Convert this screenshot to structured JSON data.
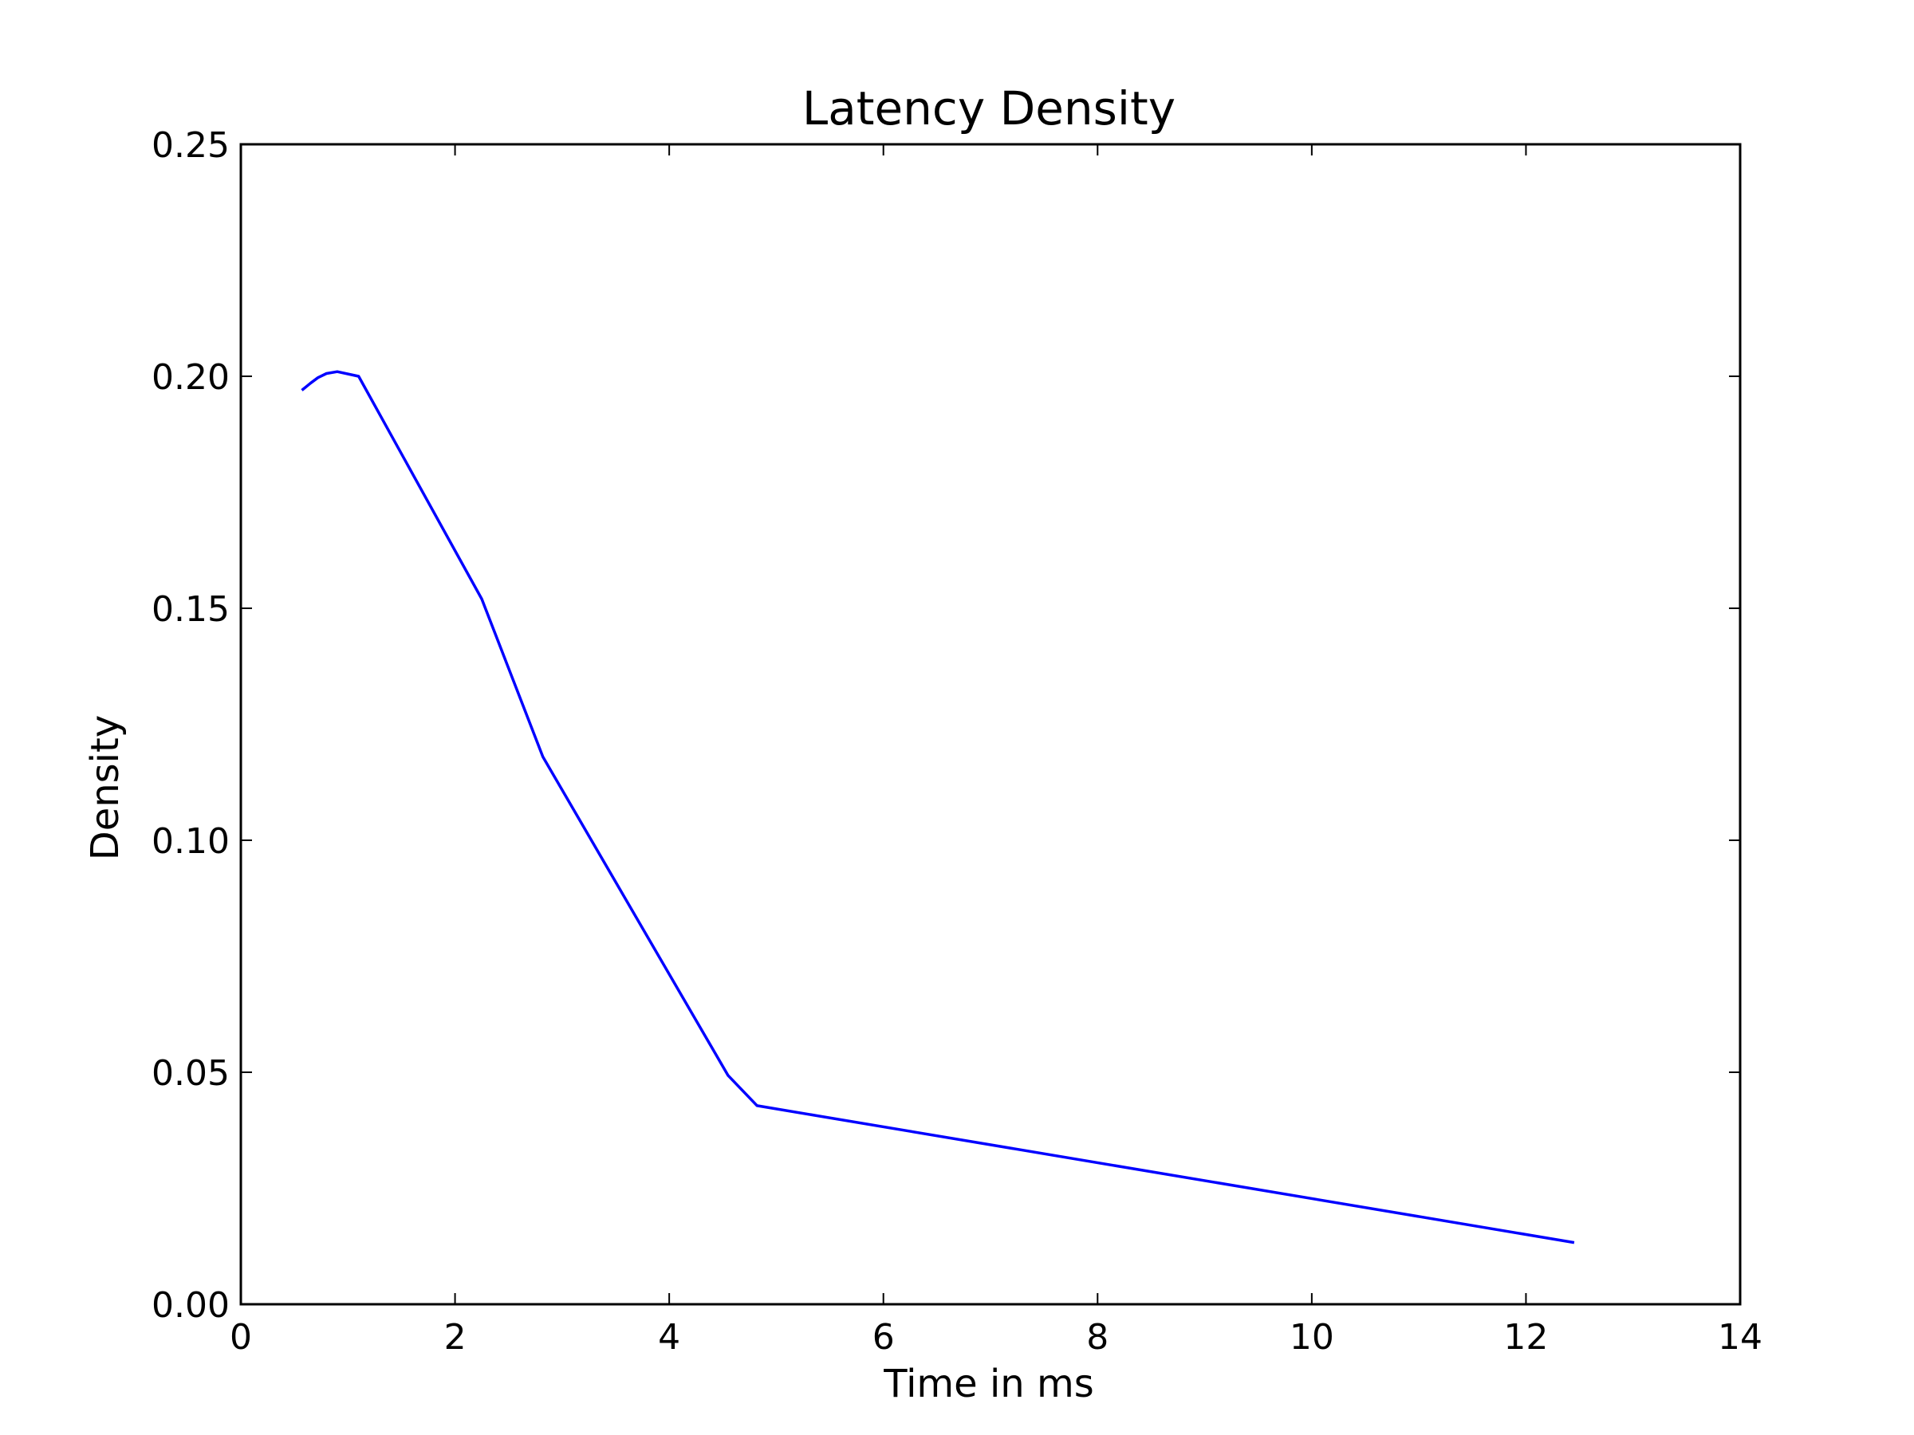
{
  "chart_data": {
    "type": "line",
    "title": "Latency Density",
    "xlabel": "Time in ms",
    "ylabel": "Density",
    "xlim": [
      0,
      14
    ],
    "ylim": [
      0,
      0.25
    ],
    "x_ticks": [
      "0",
      "2",
      "4",
      "6",
      "8",
      "10",
      "12",
      "14"
    ],
    "y_ticks": [
      "0.00",
      "0.05",
      "0.10",
      "0.15",
      "0.20",
      "0.25"
    ],
    "grid": false,
    "series": [
      {
        "color": "#0000ff",
        "x": [
          0.57,
          0.65,
          0.72,
          0.8,
          0.9,
          1.1,
          2.25,
          2.82,
          4.55,
          4.82,
          12.45
        ],
        "y": [
          0.197,
          0.1985,
          0.1997,
          0.2006,
          0.201,
          0.2,
          0.152,
          0.118,
          0.0493,
          0.0428,
          0.0133
        ]
      }
    ]
  }
}
